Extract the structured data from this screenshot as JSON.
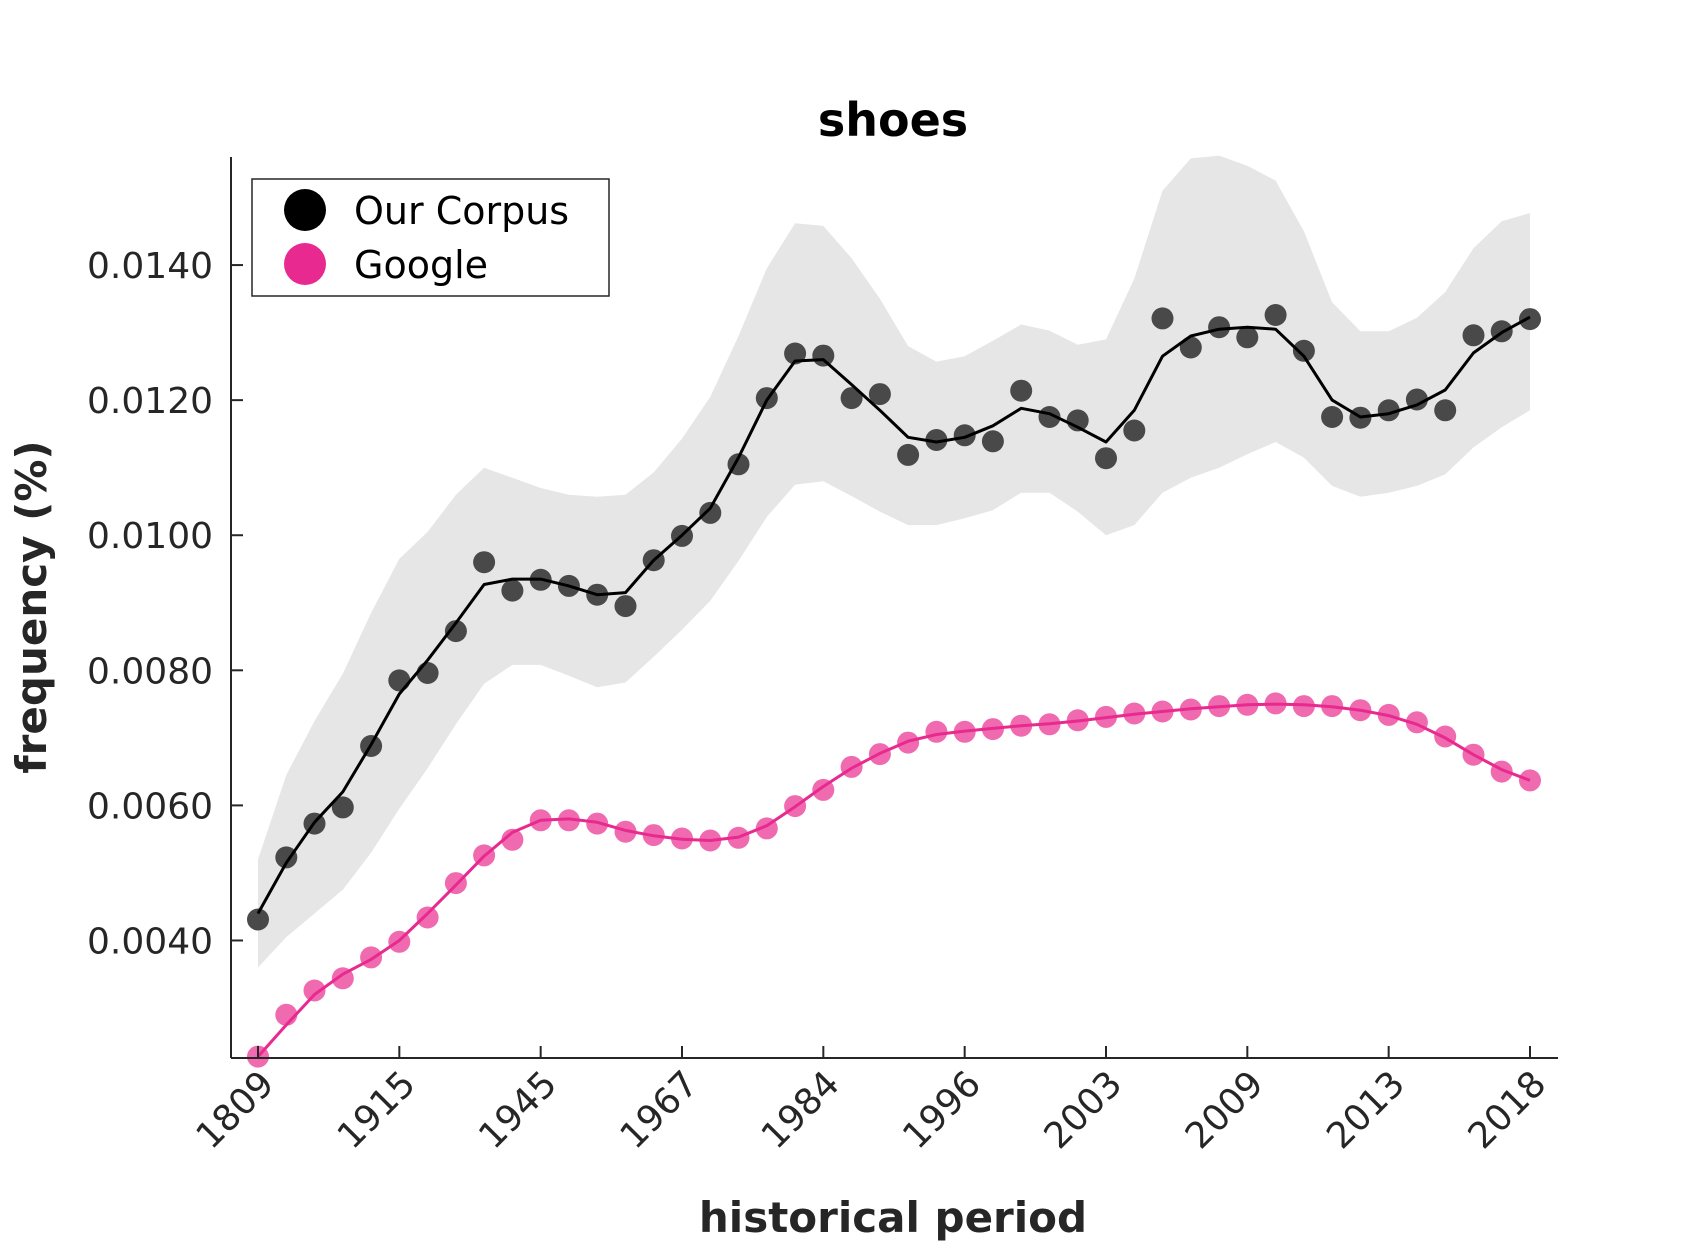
{
  "chart_data": {
    "type": "line",
    "title": "shoes",
    "xlabel": "historical period",
    "ylabel": "frequency (%)",
    "x_tick_labels": [
      "1809",
      "1915",
      "1945",
      "1967",
      "1984",
      "1996",
      "2003",
      "2009",
      "2013",
      "2018"
    ],
    "y_ticks": [
      0.004,
      0.006,
      0.008,
      0.01,
      0.012,
      0.014
    ],
    "y_tick_labels": [
      "0.0040",
      "0.0060",
      "0.0080",
      "0.0100",
      "0.0120",
      "0.0140"
    ],
    "ylim": [
      0.00226,
      0.0156
    ],
    "grid": false,
    "legend_position": "top-left",
    "n_points": 46,
    "series": [
      {
        "name": "Our Corpus",
        "color": "#000000",
        "points": [
          0.00431,
          0.00523,
          0.00573,
          0.00597,
          0.00688,
          0.00785,
          0.00796,
          0.00858,
          0.0096,
          0.00918,
          0.00934,
          0.00925,
          0.00912,
          0.00895,
          0.00963,
          0.00999,
          0.01033,
          0.01105,
          0.01203,
          0.01269,
          0.01266,
          0.01203,
          0.01209,
          0.01119,
          0.01141,
          0.01148,
          0.01139,
          0.01214,
          0.01175,
          0.0117,
          0.01114,
          0.01155,
          0.01321,
          0.01278,
          0.01308,
          0.01293,
          0.01326,
          0.01273,
          0.01175,
          0.01174,
          0.01185,
          0.01201,
          0.01185,
          0.01296,
          0.01302,
          0.0132
        ],
        "smooth": [
          0.0044,
          0.00515,
          0.00575,
          0.0062,
          0.0069,
          0.00765,
          0.00815,
          0.0087,
          0.00927,
          0.00935,
          0.00935,
          0.00925,
          0.00912,
          0.00915,
          0.00963,
          0.01,
          0.0104,
          0.01115,
          0.012,
          0.01258,
          0.0126,
          0.01223,
          0.01185,
          0.01145,
          0.01138,
          0.01145,
          0.01162,
          0.01188,
          0.0118,
          0.0116,
          0.01138,
          0.01185,
          0.01265,
          0.01295,
          0.01305,
          0.01308,
          0.01305,
          0.01265,
          0.012,
          0.01175,
          0.0118,
          0.01193,
          0.01215,
          0.0127,
          0.013,
          0.01323
        ],
        "band_upper": [
          0.0052,
          0.00645,
          0.00725,
          0.00795,
          0.00885,
          0.00965,
          0.01005,
          0.0106,
          0.011,
          0.01085,
          0.0107,
          0.0106,
          0.01057,
          0.0106,
          0.01093,
          0.01143,
          0.01205,
          0.01295,
          0.01395,
          0.01462,
          0.01458,
          0.0141,
          0.0135,
          0.0128,
          0.01257,
          0.01265,
          0.01288,
          0.01312,
          0.01303,
          0.01282,
          0.0129,
          0.0138,
          0.0151,
          0.01558,
          0.01562,
          0.01547,
          0.01525,
          0.0145,
          0.01345,
          0.01302,
          0.01302,
          0.01322,
          0.0136,
          0.01425,
          0.01465,
          0.01477
        ],
        "band_lower": [
          0.0036,
          0.00405,
          0.0044,
          0.00475,
          0.0053,
          0.00595,
          0.00655,
          0.0072,
          0.0078,
          0.00808,
          0.00808,
          0.00792,
          0.00775,
          0.00782,
          0.0082,
          0.0086,
          0.00903,
          0.00962,
          0.01027,
          0.01075,
          0.0108,
          0.01058,
          0.01035,
          0.01015,
          0.01015,
          0.01025,
          0.01037,
          0.01063,
          0.01063,
          0.01035,
          0.01,
          0.01015,
          0.01063,
          0.01085,
          0.011,
          0.0112,
          0.01138,
          0.01115,
          0.01073,
          0.01057,
          0.01063,
          0.01073,
          0.0109,
          0.0113,
          0.0116,
          0.01185
        ]
      },
      {
        "name": "Google",
        "color": "#e8298f",
        "points": [
          0.00228,
          0.0029,
          0.00326,
          0.00344,
          0.00375,
          0.00398,
          0.00434,
          0.00485,
          0.00526,
          0.00549,
          0.00578,
          0.00578,
          0.00573,
          0.00561,
          0.00556,
          0.00551,
          0.00548,
          0.00552,
          0.00566,
          0.00599,
          0.00623,
          0.00657,
          0.00676,
          0.00693,
          0.00709,
          0.00709,
          0.00713,
          0.00718,
          0.0072,
          0.00726,
          0.00731,
          0.00736,
          0.00739,
          0.00742,
          0.00747,
          0.00749,
          0.00751,
          0.00747,
          0.00747,
          0.00741,
          0.00734,
          0.00723,
          0.00702,
          0.00675,
          0.0065,
          0.00637
        ],
        "smooth": [
          0.00228,
          0.00275,
          0.0032,
          0.0035,
          0.00372,
          0.004,
          0.0044,
          0.00482,
          0.00525,
          0.0056,
          0.00578,
          0.0058,
          0.00575,
          0.00563,
          0.00555,
          0.0055,
          0.00548,
          0.00553,
          0.0057,
          0.00598,
          0.00628,
          0.00655,
          0.00677,
          0.00695,
          0.00705,
          0.0071,
          0.00714,
          0.00718,
          0.00721,
          0.00725,
          0.0073,
          0.00735,
          0.00739,
          0.00743,
          0.00746,
          0.00749,
          0.0075,
          0.00749,
          0.00746,
          0.00741,
          0.00733,
          0.0072,
          0.007,
          0.00675,
          0.00653,
          0.00637
        ]
      }
    ]
  }
}
